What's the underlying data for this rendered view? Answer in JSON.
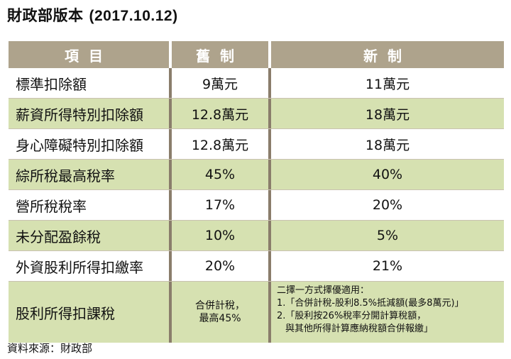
{
  "title": "財政部版本",
  "date": "(2017.10.12)",
  "header": {
    "item": "項目",
    "old": "舊制",
    "new": "新制"
  },
  "rows": [
    {
      "item": "標準扣除額",
      "old": "9萬元",
      "new": "11萬元"
    },
    {
      "item": "薪資所得特別扣除額",
      "old": "12.8萬元",
      "new": "18萬元"
    },
    {
      "item": "身心障礙特別扣除額",
      "old": "12.8萬元",
      "new": "18萬元"
    },
    {
      "item": "綜所稅最高稅率",
      "old": "45%",
      "new": "40%"
    },
    {
      "item": "營所稅稅率",
      "old": "17%",
      "new": "20%"
    },
    {
      "item": "未分配盈餘稅",
      "old": "10%",
      "new": "5%"
    },
    {
      "item": "外資股利所得扣繳率",
      "old": "20%",
      "new": "21%"
    }
  ],
  "last_row": {
    "item": "股利所得扣課稅",
    "old_line1": "合併計稅，",
    "old_line2": "最高45%",
    "new_line1": "二擇一方式擇優適用：",
    "new_line2": "1.「合併計稅-股利8.5%抵減額(最多8萬元)」",
    "new_line3": "2.「股利按26%稅率分開計算稅額，",
    "new_line4": "與其他所得計算應納稅額合併報繳」"
  },
  "source": "資料來源：財政部"
}
